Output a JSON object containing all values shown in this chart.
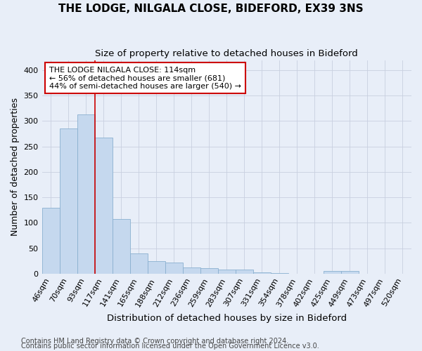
{
  "title1": "THE LODGE, NILGALA CLOSE, BIDEFORD, EX39 3NS",
  "title2": "Size of property relative to detached houses in Bideford",
  "xlabel": "Distribution of detached houses by size in Bideford",
  "ylabel": "Number of detached properties",
  "categories": [
    "46sqm",
    "70sqm",
    "93sqm",
    "117sqm",
    "141sqm",
    "165sqm",
    "188sqm",
    "212sqm",
    "236sqm",
    "259sqm",
    "283sqm",
    "307sqm",
    "331sqm",
    "354sqm",
    "378sqm",
    "402sqm",
    "425sqm",
    "449sqm",
    "473sqm",
    "497sqm",
    "520sqm"
  ],
  "values": [
    130,
    286,
    313,
    268,
    108,
    40,
    25,
    22,
    12,
    10,
    8,
    8,
    3,
    1,
    0,
    0,
    5,
    5,
    0,
    0,
    0
  ],
  "bar_color": "#c5d8ee",
  "bar_edge_color": "#8ab0d0",
  "vline_color": "#cc0000",
  "vline_x": 3.0,
  "annotation_text_line1": "THE LODGE NILGALA CLOSE: 114sqm",
  "annotation_text_line2": "← 56% of detached houses are smaller (681)",
  "annotation_text_line3": "44% of semi-detached houses are larger (540) →",
  "annotation_box_color": "#ffffff",
  "annotation_box_edge": "#cc0000",
  "ylim": [
    0,
    420
  ],
  "yticks": [
    0,
    50,
    100,
    150,
    200,
    250,
    300,
    350,
    400
  ],
  "grid_color": "#c8cfe0",
  "bg_color": "#e8eef8",
  "title1_fontsize": 11,
  "title2_fontsize": 9.5,
  "ylabel_fontsize": 9,
  "xlabel_fontsize": 9.5,
  "tick_fontsize": 8,
  "footnote1": "Contains HM Land Registry data © Crown copyright and database right 2024.",
  "footnote2": "Contains public sector information licensed under the Open Government Licence v3.0.",
  "footnote_fontsize": 7
}
